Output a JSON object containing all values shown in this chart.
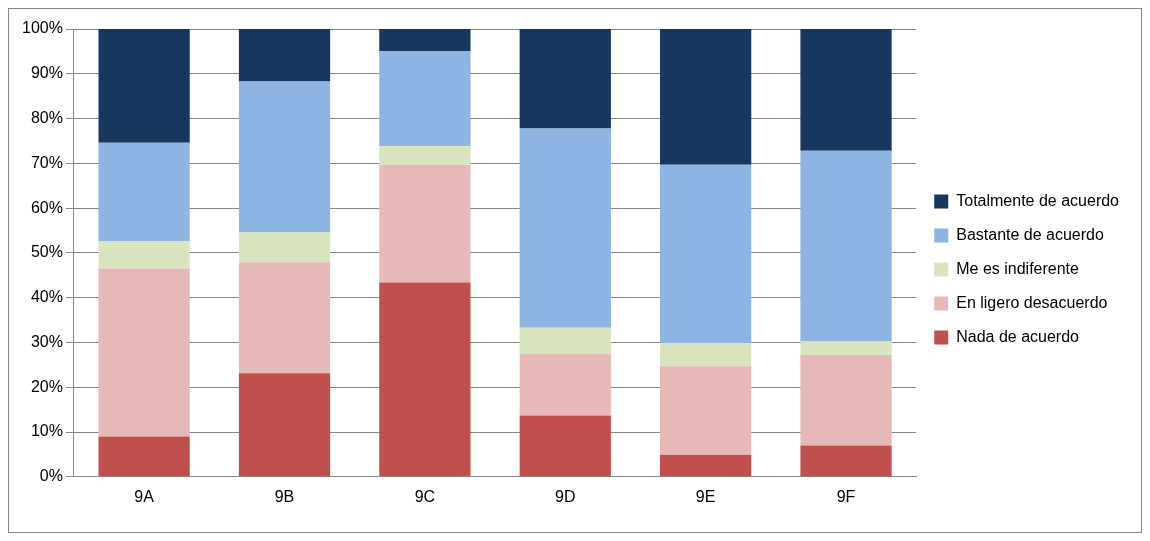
{
  "chart_data": {
    "type": "bar",
    "stacked": true,
    "categories": [
      "9A",
      "9B",
      "9C",
      "9D",
      "9E",
      "9F"
    ],
    "series": [
      {
        "name": "Nada de acuerdo",
        "color": "#c0504d",
        "values": [
          9.0,
          23.1,
          43.4,
          13.7,
          4.9,
          7.0
        ]
      },
      {
        "name": "En ligero desacuerdo",
        "color": "#e6b9b8",
        "values": [
          37.5,
          24.8,
          26.3,
          13.7,
          19.8,
          20.2
        ]
      },
      {
        "name": "Me es indiferente",
        "color": "#d7e4bd",
        "values": [
          6.1,
          6.7,
          4.2,
          5.9,
          5.2,
          3.1
        ]
      },
      {
        "name": "Bastante de acuerdo",
        "color": "#8eb4e3",
        "values": [
          22.0,
          33.7,
          21.2,
          44.5,
          39.8,
          42.5
        ]
      },
      {
        "name": "Totalmente de acuerdo",
        "color": "#17375e",
        "values": [
          25.4,
          11.7,
          4.9,
          22.2,
          30.3,
          27.2
        ]
      }
    ],
    "ylim": [
      0,
      100
    ],
    "yticks": [
      {
        "value": 0,
        "label": "0%"
      },
      {
        "value": 10,
        "label": "10%"
      },
      {
        "value": 20,
        "label": "20%"
      },
      {
        "value": 30,
        "label": "30%"
      },
      {
        "value": 40,
        "label": "40%"
      },
      {
        "value": 50,
        "label": "50%"
      },
      {
        "value": 60,
        "label": "60%"
      },
      {
        "value": 70,
        "label": "70%"
      },
      {
        "value": 80,
        "label": "80%"
      },
      {
        "value": 90,
        "label": "90%"
      },
      {
        "value": 100,
        "label": "100%"
      }
    ],
    "grid": "y",
    "legend": "right"
  }
}
